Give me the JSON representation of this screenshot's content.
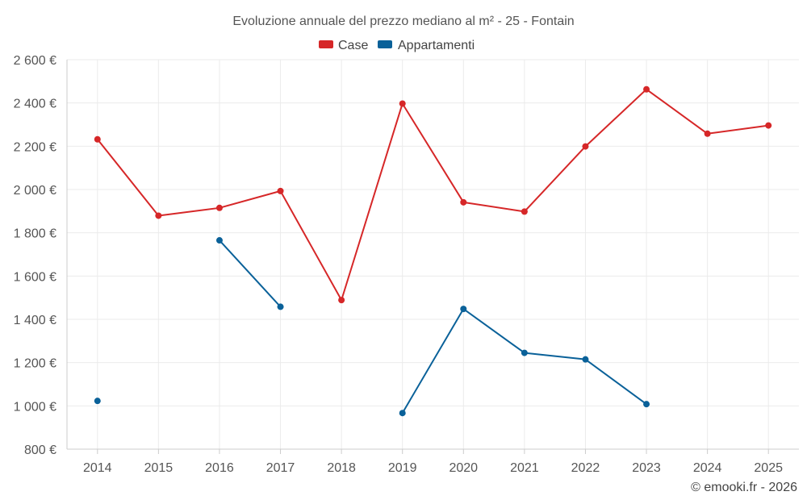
{
  "chart_data": {
    "type": "line",
    "title": "Evoluzione annuale del prezzo mediano al m² - 25 - Fontain",
    "categories": [
      "2014",
      "2015",
      "2016",
      "2017",
      "2018",
      "2019",
      "2020",
      "2021",
      "2022",
      "2023",
      "2024",
      "2025"
    ],
    "y_ticks": [
      "800 €",
      "1 000 €",
      "1 200 €",
      "1 400 €",
      "1 600 €",
      "1 800 €",
      "2 000 €",
      "2 200 €",
      "2 400 €",
      "2 600 €"
    ],
    "ylim": [
      800,
      2600
    ],
    "grid": true,
    "legend_position": "top-center",
    "series": [
      {
        "name": "Case",
        "color": "#d62728",
        "values": [
          2232,
          1879,
          1915,
          1993,
          1489,
          2397,
          1941,
          1898,
          2199,
          2463,
          2258,
          2296
        ]
      },
      {
        "name": "Appartamenti",
        "color": "#0a6199",
        "values": [
          1023,
          null,
          1765,
          1458,
          null,
          967,
          1448,
          1245,
          1215,
          1008,
          null,
          null
        ]
      }
    ],
    "credit": "© emooki.fr - 2026"
  }
}
